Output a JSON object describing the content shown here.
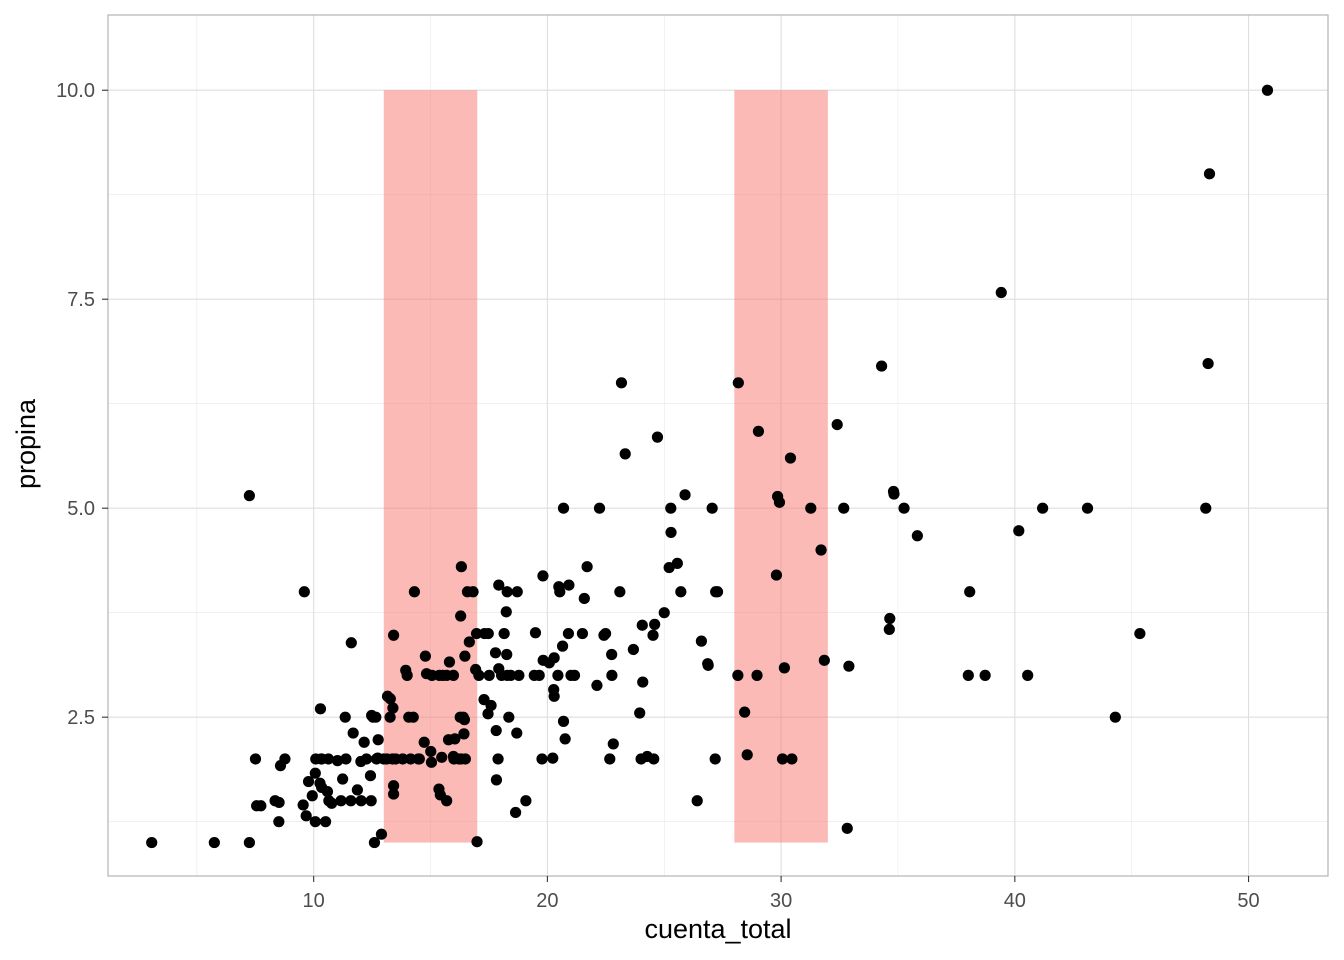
{
  "chart_data": {
    "type": "scatter",
    "title": "",
    "xlabel": "cuenta_total",
    "ylabel": "propina",
    "xlim": [
      1.2,
      53.4
    ],
    "ylim": [
      0.6,
      10.9
    ],
    "x_ticks": [
      10,
      20,
      30,
      40,
      50
    ],
    "x_tick_labels": [
      "10",
      "20",
      "30",
      "40",
      "50"
    ],
    "y_ticks": [
      2.5,
      5.0,
      7.5,
      10.0
    ],
    "y_tick_labels": [
      "2.5",
      "5.0",
      "7.5",
      "10.0"
    ],
    "x_minor_ticks": [
      5,
      15,
      25,
      35,
      45
    ],
    "y_minor_ticks": [
      1.25,
      3.75,
      6.25,
      8.75
    ],
    "grid": true,
    "legend": "none",
    "colors": {
      "points": "#000000",
      "bands": "#f8766d",
      "grid": "#dedede",
      "panel_border": "#b3b3b3"
    },
    "bands": [
      {
        "x": [
          13,
          17
        ],
        "y": [
          1,
          10
        ]
      },
      {
        "x": [
          28,
          32
        ],
        "y": [
          1,
          10
        ]
      }
    ],
    "points": [
      [
        3.07,
        1.0
      ],
      [
        5.75,
        1.0
      ],
      [
        7.25,
        1.0
      ],
      [
        7.25,
        5.15
      ],
      [
        7.51,
        2.0
      ],
      [
        7.56,
        1.44
      ],
      [
        7.74,
        1.44
      ],
      [
        8.35,
        1.5
      ],
      [
        8.51,
        1.25
      ],
      [
        8.52,
        1.48
      ],
      [
        8.58,
        1.92
      ],
      [
        8.77,
        2.0
      ],
      [
        9.55,
        1.45
      ],
      [
        9.6,
        4.0
      ],
      [
        9.68,
        1.32
      ],
      [
        9.78,
        1.73
      ],
      [
        9.94,
        1.56
      ],
      [
        10.07,
        1.83
      ],
      [
        10.07,
        1.25
      ],
      [
        10.09,
        2.0
      ],
      [
        10.27,
        1.71
      ],
      [
        10.29,
        2.6
      ],
      [
        10.33,
        2.0
      ],
      [
        10.34,
        1.66
      ],
      [
        10.34,
        2.0
      ],
      [
        10.51,
        1.25
      ],
      [
        10.59,
        1.61
      ],
      [
        10.63,
        2.0
      ],
      [
        10.65,
        1.5
      ],
      [
        10.77,
        1.47
      ],
      [
        11.02,
        1.98
      ],
      [
        11.17,
        1.5
      ],
      [
        11.24,
        1.76
      ],
      [
        11.35,
        2.5
      ],
      [
        11.38,
        2.0
      ],
      [
        11.59,
        1.5
      ],
      [
        11.61,
        3.39
      ],
      [
        11.69,
        2.31
      ],
      [
        11.87,
        1.63
      ],
      [
        12.02,
        1.97
      ],
      [
        12.03,
        1.5
      ],
      [
        12.16,
        2.2
      ],
      [
        12.26,
        2.0
      ],
      [
        12.43,
        1.8
      ],
      [
        12.46,
        1.5
      ],
      [
        12.48,
        2.52
      ],
      [
        12.54,
        2.5
      ],
      [
        12.6,
        1.0
      ],
      [
        12.66,
        2.5
      ],
      [
        12.69,
        2.0
      ],
      [
        12.74,
        2.01
      ],
      [
        12.76,
        2.23
      ],
      [
        12.9,
        1.1
      ],
      [
        13.0,
        2.0
      ],
      [
        13.13,
        2.0
      ],
      [
        13.16,
        2.75
      ],
      [
        13.27,
        2.5
      ],
      [
        13.28,
        2.72
      ],
      [
        13.37,
        2.0
      ],
      [
        13.39,
        2.61
      ],
      [
        13.42,
        3.48
      ],
      [
        13.42,
        1.68
      ],
      [
        13.42,
        1.58
      ],
      [
        13.51,
        2.0
      ],
      [
        13.81,
        2.0
      ],
      [
        13.94,
        3.06
      ],
      [
        14.0,
        3.0
      ],
      [
        14.07,
        2.5
      ],
      [
        14.15,
        2.0
      ],
      [
        14.26,
        2.5
      ],
      [
        14.31,
        4.0
      ],
      [
        14.48,
        2.0
      ],
      [
        14.52,
        2.0
      ],
      [
        14.73,
        2.2
      ],
      [
        14.78,
        3.23
      ],
      [
        14.83,
        3.02
      ],
      [
        15.01,
        2.09
      ],
      [
        15.04,
        1.96
      ],
      [
        15.06,
        3.0
      ],
      [
        15.36,
        1.64
      ],
      [
        15.38,
        3.0
      ],
      [
        15.42,
        1.57
      ],
      [
        15.48,
        2.02
      ],
      [
        15.53,
        3.0
      ],
      [
        15.69,
        3.0
      ],
      [
        15.69,
        1.5
      ],
      [
        15.77,
        2.23
      ],
      [
        15.81,
        3.16
      ],
      [
        15.98,
        2.03
      ],
      [
        15.98,
        3.0
      ],
      [
        16.0,
        2.0
      ],
      [
        16.04,
        2.24
      ],
      [
        16.21,
        2.0
      ],
      [
        16.27,
        2.5
      ],
      [
        16.29,
        3.71
      ],
      [
        16.31,
        2.0
      ],
      [
        16.32,
        4.3
      ],
      [
        16.4,
        2.5
      ],
      [
        16.43,
        2.3
      ],
      [
        16.45,
        2.47
      ],
      [
        16.47,
        3.23
      ],
      [
        16.49,
        2.0
      ],
      [
        16.58,
        4.0
      ],
      [
        16.66,
        3.4
      ],
      [
        16.82,
        4.0
      ],
      [
        16.93,
        3.07
      ],
      [
        16.97,
        3.5
      ],
      [
        16.99,
        1.01
      ],
      [
        17.07,
        3.0
      ],
      [
        17.29,
        2.71
      ],
      [
        17.31,
        3.5
      ],
      [
        17.46,
        2.54
      ],
      [
        17.47,
        3.5
      ],
      [
        17.51,
        3.0
      ],
      [
        17.59,
        2.64
      ],
      [
        17.78,
        3.27
      ],
      [
        17.81,
        2.34
      ],
      [
        17.82,
        1.75
      ],
      [
        17.89,
        2.0
      ],
      [
        17.92,
        4.08
      ],
      [
        17.92,
        3.08
      ],
      [
        18.04,
        3.0
      ],
      [
        18.15,
        3.5
      ],
      [
        18.24,
        3.76
      ],
      [
        18.26,
        3.25
      ],
      [
        18.28,
        4.0
      ],
      [
        18.29,
        3.0
      ],
      [
        18.35,
        2.5
      ],
      [
        18.43,
        3.0
      ],
      [
        18.64,
        1.36
      ],
      [
        18.69,
        2.31
      ],
      [
        18.71,
        4.0
      ],
      [
        18.78,
        3.0
      ],
      [
        19.08,
        1.5
      ],
      [
        19.44,
        3.0
      ],
      [
        19.49,
        3.51
      ],
      [
        19.65,
        3.0
      ],
      [
        19.77,
        2.0
      ],
      [
        19.81,
        4.19
      ],
      [
        19.82,
        3.18
      ],
      [
        20.08,
        3.15
      ],
      [
        20.23,
        2.01
      ],
      [
        20.27,
        2.83
      ],
      [
        20.29,
        3.21
      ],
      [
        20.29,
        2.75
      ],
      [
        20.45,
        3.0
      ],
      [
        20.49,
        4.06
      ],
      [
        20.53,
        4.0
      ],
      [
        20.65,
        3.35
      ],
      [
        20.69,
        5.0
      ],
      [
        20.69,
        2.45
      ],
      [
        20.76,
        2.24
      ],
      [
        20.9,
        3.5
      ],
      [
        20.92,
        4.08
      ],
      [
        21.01,
        3.0
      ],
      [
        21.16,
        3.0
      ],
      [
        21.5,
        3.5
      ],
      [
        21.58,
        3.92
      ],
      [
        21.7,
        4.3
      ],
      [
        22.12,
        2.88
      ],
      [
        22.23,
        5.0
      ],
      [
        22.42,
        3.48
      ],
      [
        22.49,
        3.5
      ],
      [
        22.67,
        2.0
      ],
      [
        22.75,
        3.25
      ],
      [
        22.76,
        3.0
      ],
      [
        22.82,
        2.18
      ],
      [
        23.1,
        4.0
      ],
      [
        23.17,
        6.5
      ],
      [
        23.33,
        5.65
      ],
      [
        23.68,
        3.31
      ],
      [
        23.95,
        2.55
      ],
      [
        24.01,
        2.0
      ],
      [
        24.06,
        3.6
      ],
      [
        24.08,
        2.92
      ],
      [
        24.27,
        2.03
      ],
      [
        24.52,
        3.48
      ],
      [
        24.55,
        2.0
      ],
      [
        24.59,
        3.61
      ],
      [
        24.71,
        5.85
      ],
      [
        25.0,
        3.75
      ],
      [
        25.21,
        4.29
      ],
      [
        25.28,
        5.0
      ],
      [
        25.29,
        4.71
      ],
      [
        25.56,
        4.34
      ],
      [
        25.71,
        4.0
      ],
      [
        25.89,
        5.16
      ],
      [
        26.41,
        1.5
      ],
      [
        26.59,
        3.41
      ],
      [
        26.86,
        3.14
      ],
      [
        26.88,
        3.12
      ],
      [
        27.05,
        5.0
      ],
      [
        27.18,
        2.0
      ],
      [
        27.2,
        4.0
      ],
      [
        27.28,
        4.0
      ],
      [
        28.15,
        3.0
      ],
      [
        28.17,
        6.5
      ],
      [
        28.44,
        2.56
      ],
      [
        28.55,
        2.05
      ],
      [
        28.97,
        3.0
      ],
      [
        29.03,
        5.92
      ],
      [
        29.8,
        4.2
      ],
      [
        29.85,
        5.14
      ],
      [
        29.93,
        5.07
      ],
      [
        30.06,
        2.0
      ],
      [
        30.14,
        3.09
      ],
      [
        30.4,
        5.6
      ],
      [
        30.46,
        2.0
      ],
      [
        31.27,
        5.0
      ],
      [
        31.71,
        4.5
      ],
      [
        31.85,
        3.18
      ],
      [
        32.4,
        6.0
      ],
      [
        32.68,
        5.0
      ],
      [
        32.83,
        1.17
      ],
      [
        32.9,
        3.11
      ],
      [
        34.3,
        6.7
      ],
      [
        34.63,
        3.55
      ],
      [
        34.65,
        3.68
      ],
      [
        34.81,
        5.2
      ],
      [
        34.83,
        5.17
      ],
      [
        35.26,
        5.0
      ],
      [
        35.83,
        4.67
      ],
      [
        38.01,
        3.0
      ],
      [
        38.07,
        4.0
      ],
      [
        38.73,
        3.0
      ],
      [
        39.42,
        7.58
      ],
      [
        40.17,
        4.73
      ],
      [
        40.55,
        3.0
      ],
      [
        41.19,
        5.0
      ],
      [
        43.11,
        5.0
      ],
      [
        44.3,
        2.5
      ],
      [
        45.35,
        3.5
      ],
      [
        48.17,
        5.0
      ],
      [
        48.27,
        6.73
      ],
      [
        48.33,
        9.0
      ],
      [
        50.81,
        10.0
      ]
    ]
  }
}
